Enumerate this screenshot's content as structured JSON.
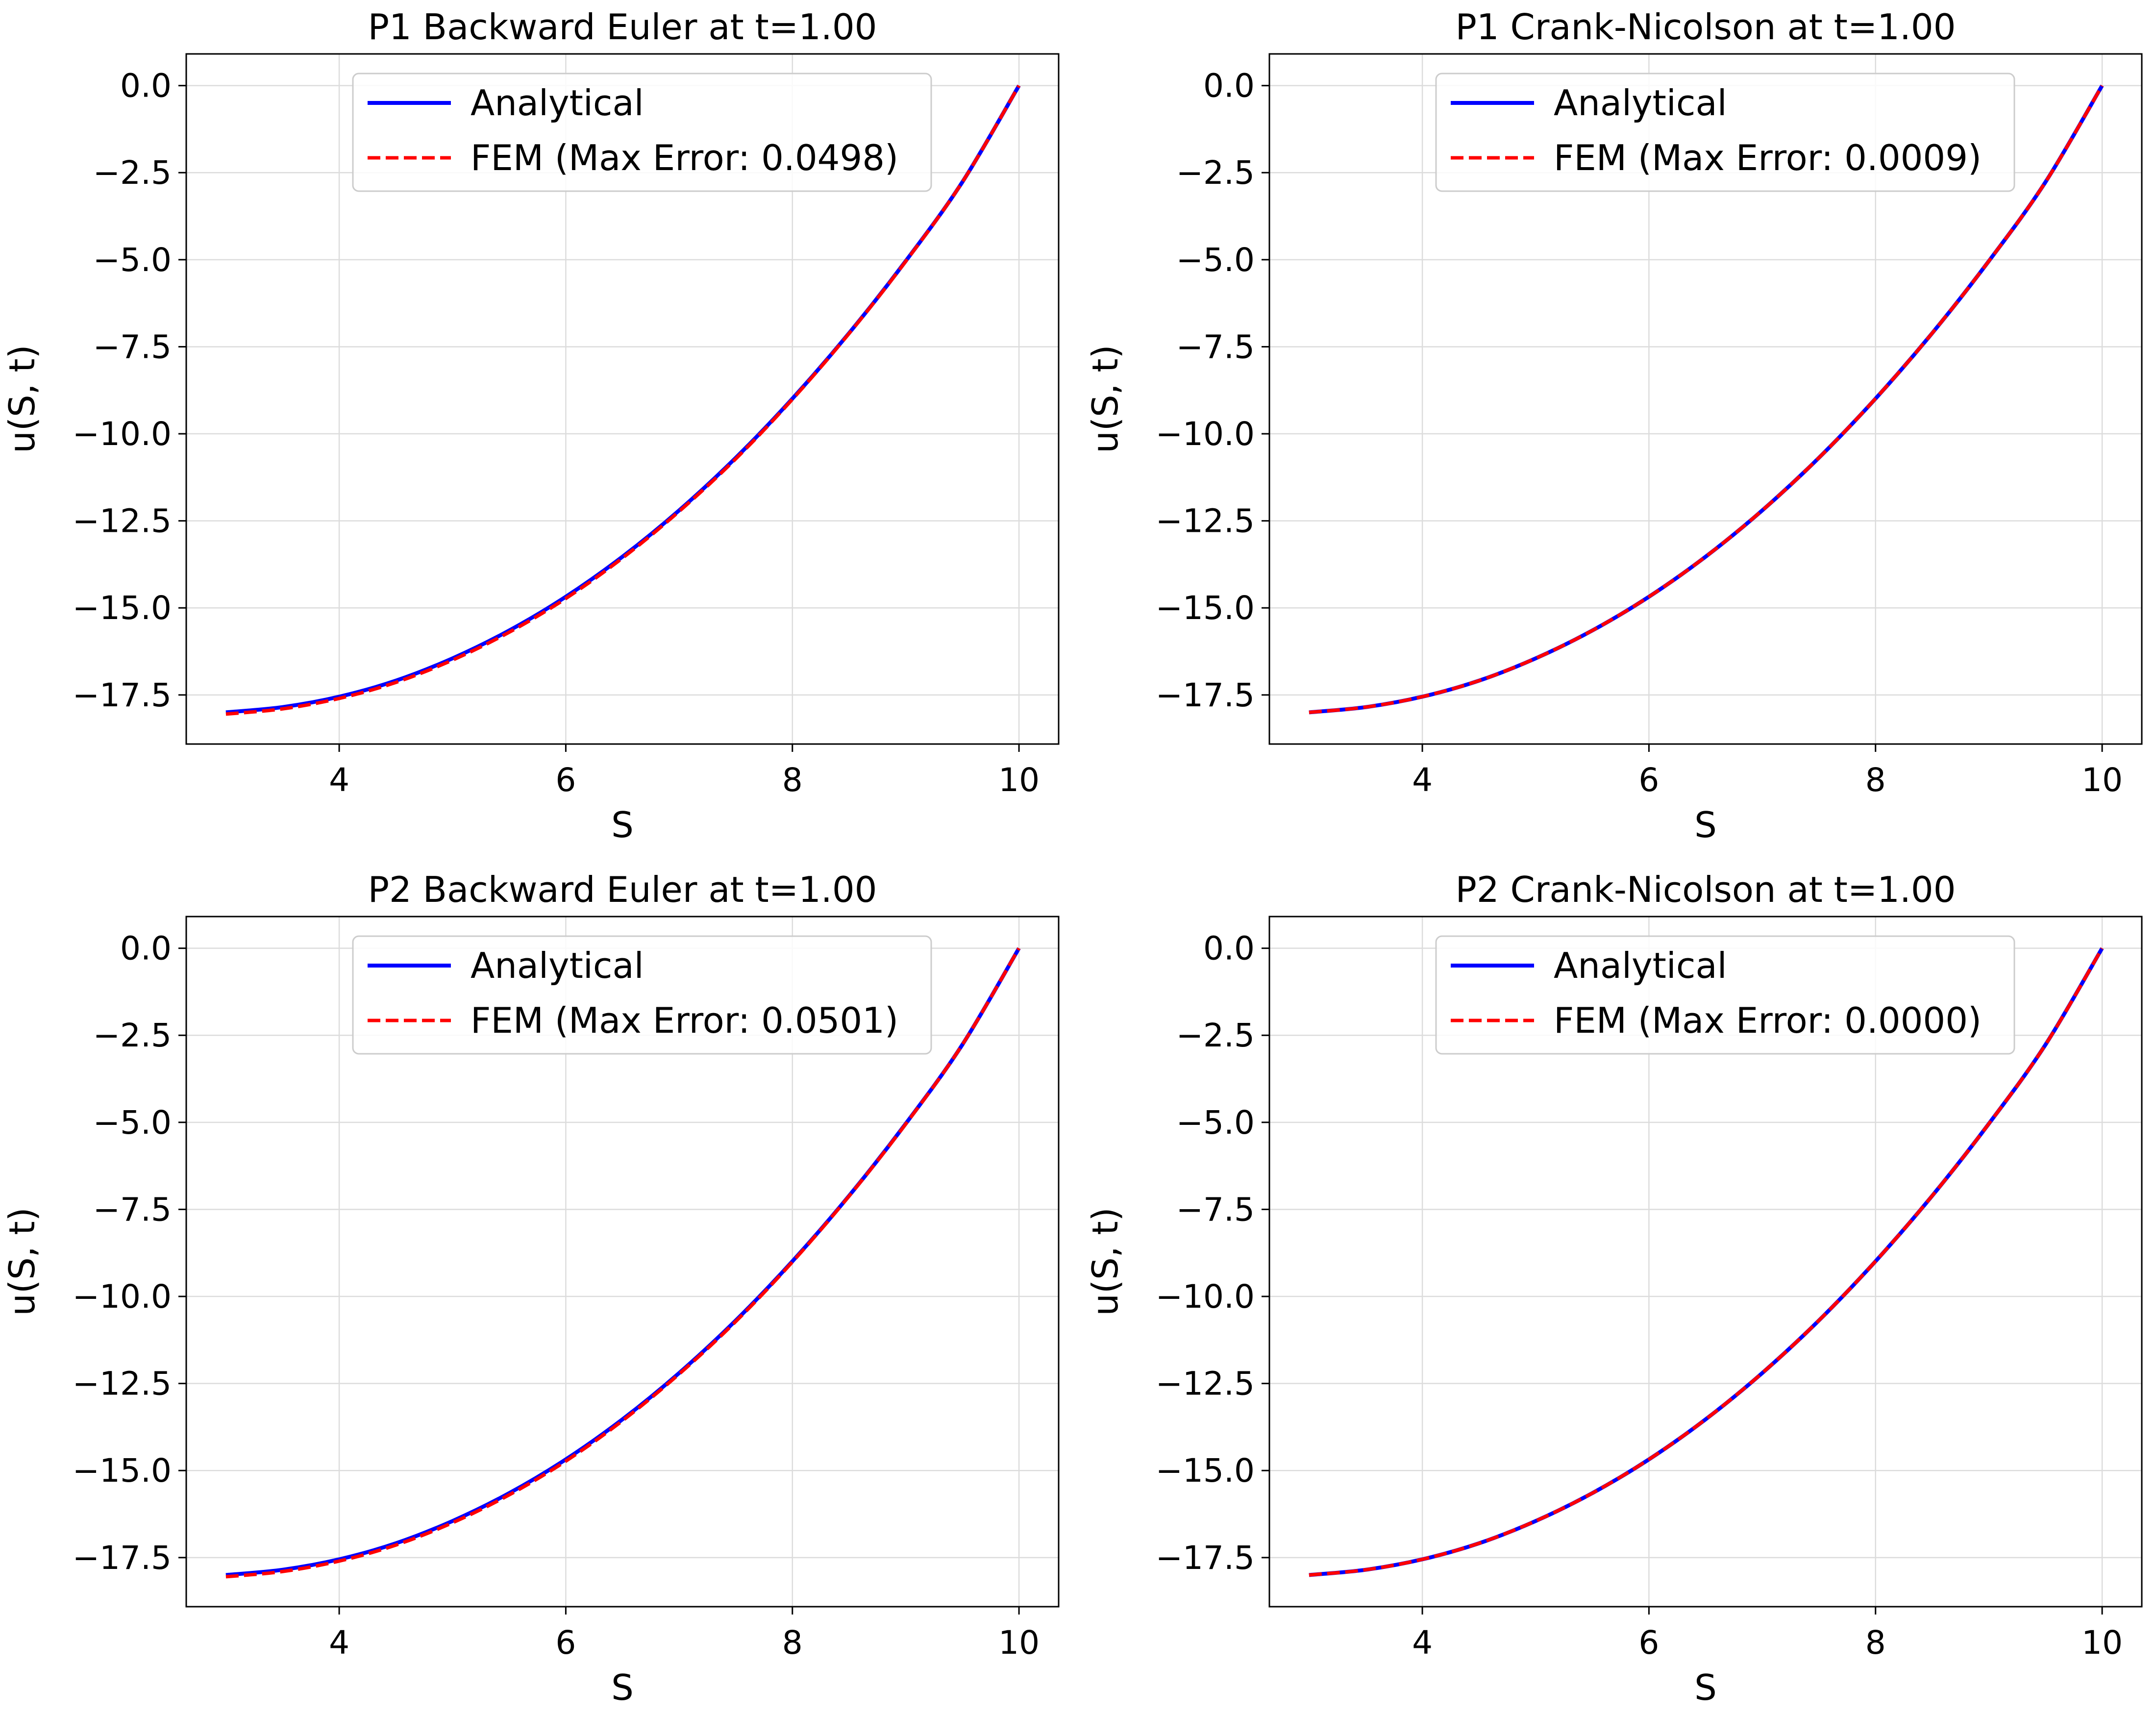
{
  "chart_data": [
    {
      "type": "line",
      "title": "P1 Backward Euler at t=1.00",
      "xlabel": "S",
      "ylabel": "u(S, t)",
      "xlim": [
        2.65,
        10.35
      ],
      "ylim": [
        -18.91,
        0.91
      ],
      "xticks": [
        4,
        6,
        8,
        10
      ],
      "xtick_labels": [
        "4",
        "6",
        "8",
        "10"
      ],
      "yticks": [
        0.0,
        -2.5,
        -5.0,
        -7.5,
        -10.0,
        -12.5,
        -15.0,
        -17.5
      ],
      "ytick_labels": [
        "0.0",
        "−2.5",
        "−5.0",
        "−7.5",
        "−10.0",
        "−12.5",
        "−15.0",
        "−17.5"
      ],
      "grid": true,
      "legend_position": "upper center",
      "x": [
        3.0,
        3.5,
        4.0,
        4.5,
        5.0,
        5.5,
        6.0,
        6.5,
        7.0,
        7.5,
        8.0,
        8.5,
        9.0,
        9.5,
        10.0
      ],
      "series": [
        {
          "name": "Analytical",
          "color": "#0000ff",
          "style": "solid",
          "values": [
            -18.0,
            -17.85,
            -17.55,
            -17.09,
            -16.45,
            -15.65,
            -14.68,
            -13.53,
            -12.2,
            -10.69,
            -8.99,
            -7.11,
            -5.04,
            -2.77,
            0.0
          ]
        },
        {
          "name": "FEM (Max Error: 0.0498)",
          "color": "#ff0000",
          "style": "dashed",
          "values": [
            -18.05,
            -17.9,
            -17.6,
            -17.14,
            -16.5,
            -15.7,
            -14.73,
            -13.57,
            -12.23,
            -10.72,
            -9.01,
            -7.12,
            -5.05,
            -2.77,
            0.0
          ]
        }
      ]
    },
    {
      "type": "line",
      "title": "P1 Crank-Nicolson at t=1.00",
      "xlabel": "S",
      "ylabel": "u(S, t)",
      "xlim": [
        2.65,
        10.35
      ],
      "ylim": [
        -18.91,
        0.91
      ],
      "xticks": [
        4,
        6,
        8,
        10
      ],
      "xtick_labels": [
        "4",
        "6",
        "8",
        "10"
      ],
      "yticks": [
        0.0,
        -2.5,
        -5.0,
        -7.5,
        -10.0,
        -12.5,
        -15.0,
        -17.5
      ],
      "ytick_labels": [
        "0.0",
        "−2.5",
        "−5.0",
        "−7.5",
        "−10.0",
        "−12.5",
        "−15.0",
        "−17.5"
      ],
      "grid": true,
      "legend_position": "upper center",
      "x": [
        3.0,
        3.5,
        4.0,
        4.5,
        5.0,
        5.5,
        6.0,
        6.5,
        7.0,
        7.5,
        8.0,
        8.5,
        9.0,
        9.5,
        10.0
      ],
      "series": [
        {
          "name": "Analytical",
          "color": "#0000ff",
          "style": "solid",
          "values": [
            -18.0,
            -17.85,
            -17.55,
            -17.09,
            -16.45,
            -15.65,
            -14.68,
            -13.53,
            -12.2,
            -10.69,
            -8.99,
            -7.11,
            -5.04,
            -2.77,
            0.0
          ]
        },
        {
          "name": "FEM (Max Error: 0.0009)",
          "color": "#ff0000",
          "style": "dashed",
          "values": [
            -18.0,
            -17.85,
            -17.55,
            -17.09,
            -16.45,
            -15.65,
            -14.68,
            -13.53,
            -12.2,
            -10.69,
            -8.99,
            -7.11,
            -5.04,
            -2.77,
            0.0
          ]
        }
      ]
    },
    {
      "type": "line",
      "title": "P2 Backward Euler at t=1.00",
      "xlabel": "S",
      "ylabel": "u(S, t)",
      "xlim": [
        2.65,
        10.35
      ],
      "ylim": [
        -18.91,
        0.91
      ],
      "xticks": [
        4,
        6,
        8,
        10
      ],
      "xtick_labels": [
        "4",
        "6",
        "8",
        "10"
      ],
      "yticks": [
        0.0,
        -2.5,
        -5.0,
        -7.5,
        -10.0,
        -12.5,
        -15.0,
        -17.5
      ],
      "ytick_labels": [
        "0.0",
        "−2.5",
        "−5.0",
        "−7.5",
        "−10.0",
        "−12.5",
        "−15.0",
        "−17.5"
      ],
      "grid": true,
      "legend_position": "upper center",
      "x": [
        3.0,
        3.5,
        4.0,
        4.5,
        5.0,
        5.5,
        6.0,
        6.5,
        7.0,
        7.5,
        8.0,
        8.5,
        9.0,
        9.5,
        10.0
      ],
      "series": [
        {
          "name": "Analytical",
          "color": "#0000ff",
          "style": "solid",
          "values": [
            -18.0,
            -17.85,
            -17.55,
            -17.09,
            -16.45,
            -15.65,
            -14.68,
            -13.53,
            -12.2,
            -10.69,
            -8.99,
            -7.11,
            -5.04,
            -2.77,
            0.0
          ]
        },
        {
          "name": "FEM (Max Error: 0.0501)",
          "color": "#ff0000",
          "style": "dashed",
          "values": [
            -18.05,
            -17.9,
            -17.6,
            -17.14,
            -16.5,
            -15.7,
            -14.73,
            -13.57,
            -12.23,
            -10.72,
            -9.01,
            -7.12,
            -5.05,
            -2.77,
            0.0
          ]
        }
      ]
    },
    {
      "type": "line",
      "title": "P2 Crank-Nicolson at t=1.00",
      "xlabel": "S",
      "ylabel": "u(S, t)",
      "xlim": [
        2.65,
        10.35
      ],
      "ylim": [
        -18.91,
        0.91
      ],
      "xticks": [
        4,
        6,
        8,
        10
      ],
      "xtick_labels": [
        "4",
        "6",
        "8",
        "10"
      ],
      "yticks": [
        0.0,
        -2.5,
        -5.0,
        -7.5,
        -10.0,
        -12.5,
        -15.0,
        -17.5
      ],
      "ytick_labels": [
        "0.0",
        "−2.5",
        "−5.0",
        "−7.5",
        "−10.0",
        "−12.5",
        "−15.0",
        "−17.5"
      ],
      "grid": true,
      "legend_position": "upper center",
      "x": [
        3.0,
        3.5,
        4.0,
        4.5,
        5.0,
        5.5,
        6.0,
        6.5,
        7.0,
        7.5,
        8.0,
        8.5,
        9.0,
        9.5,
        10.0
      ],
      "series": [
        {
          "name": "Analytical",
          "color": "#0000ff",
          "style": "solid",
          "values": [
            -18.0,
            -17.85,
            -17.55,
            -17.09,
            -16.45,
            -15.65,
            -14.68,
            -13.53,
            -12.2,
            -10.69,
            -8.99,
            -7.11,
            -5.04,
            -2.77,
            0.0
          ]
        },
        {
          "name": "FEM (Max Error: 0.0000)",
          "color": "#ff0000",
          "style": "dashed",
          "values": [
            -18.0,
            -17.85,
            -17.55,
            -17.09,
            -16.45,
            -15.65,
            -14.68,
            -13.53,
            -12.2,
            -10.69,
            -8.99,
            -7.11,
            -5.04,
            -2.77,
            0.0
          ]
        }
      ]
    }
  ]
}
